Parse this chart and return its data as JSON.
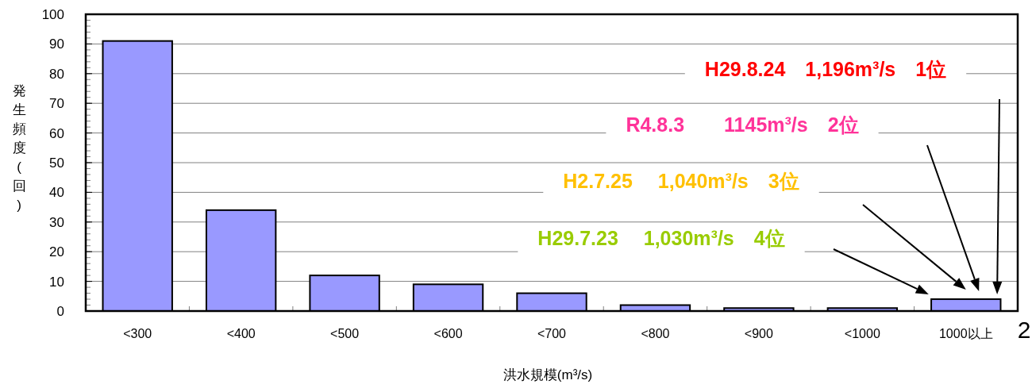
{
  "chart_data": {
    "type": "bar",
    "xlabel": "洪水規模(m³/s)",
    "ylabel": "発生頻度(回)",
    "categories": [
      "<300",
      "<400",
      "<500",
      "<600",
      "<700",
      "<800",
      "<900",
      "<1000",
      "1000以上"
    ],
    "values": [
      91,
      34,
      12,
      9,
      6,
      2,
      1,
      1,
      4
    ],
    "color": "#9999ff",
    "ylim": [
      0,
      100
    ],
    "yticks": [
      0,
      10,
      20,
      30,
      40,
      50,
      60,
      70,
      80,
      90,
      100
    ],
    "grid": "y",
    "annotations": [
      "H29.8.24　1,196m³/s　1位",
      "R4.8.3　　1145m³/s　2位",
      "H2.7.25　 1,040m³/s　3位",
      "H29.7.23　 1,030m³/s　4位",
      "2"
    ]
  }
}
